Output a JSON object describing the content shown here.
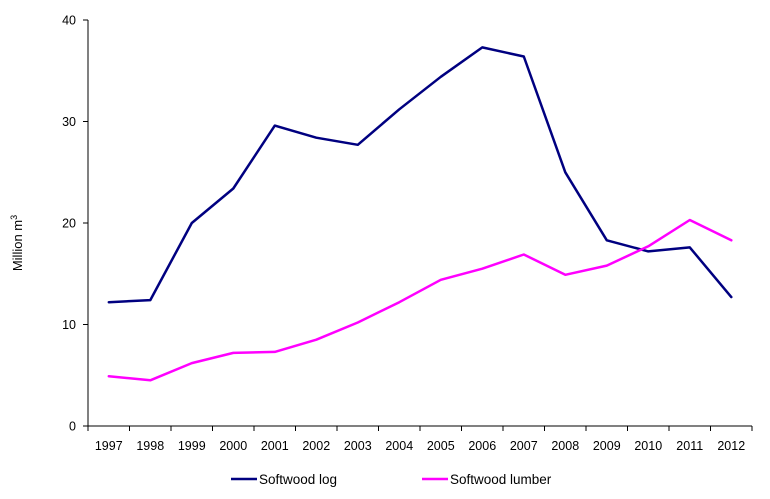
{
  "chart_data": {
    "type": "line",
    "x": [
      "1997",
      "1998",
      "1999",
      "2000",
      "2001",
      "2002",
      "2003",
      "2004",
      "2005",
      "2006",
      "2007",
      "2008",
      "2009",
      "2010",
      "2011",
      "2012"
    ],
    "series": [
      {
        "name": "Softwood log",
        "color": "#000080",
        "values": [
          12.2,
          12.4,
          20.0,
          23.4,
          29.6,
          28.4,
          27.7,
          31.2,
          34.4,
          37.3,
          36.4,
          25.0,
          18.3,
          17.2,
          17.6,
          12.7
        ]
      },
      {
        "name": "Softwood lumber",
        "color": "#ff00ff",
        "values": [
          4.9,
          4.5,
          6.2,
          7.2,
          7.3,
          8.5,
          10.2,
          12.2,
          14.4,
          15.5,
          16.9,
          14.9,
          15.8,
          17.7,
          20.3,
          18.3
        ]
      }
    ],
    "yticks": [
      0,
      10,
      20,
      30,
      40
    ],
    "ylim": [
      0,
      40
    ],
    "ylabel": "Million m",
    "ylabel_superscript": "3",
    "grid": false,
    "legend_position": "bottom"
  }
}
